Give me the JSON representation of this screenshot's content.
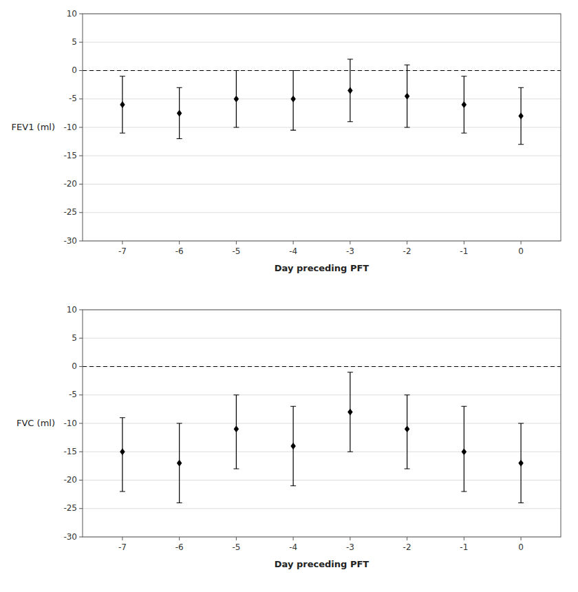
{
  "chart_data": [
    {
      "type": "errorbar",
      "x_label": "Day preceding PFT",
      "y_label": "FEV1 (ml)",
      "x": [
        -7,
        -6,
        -5,
        -4,
        -3,
        -2,
        -1,
        0
      ],
      "values": [
        -6,
        -7.5,
        -5,
        -5,
        -3.5,
        -4.5,
        -6,
        -8
      ],
      "upper": [
        -1,
        -3,
        0,
        0,
        2,
        1,
        -1,
        -3
      ],
      "lower": [
        -11,
        -12,
        -10,
        -10.5,
        -9,
        -10,
        -11,
        -13
      ],
      "xlim": [
        -7.7,
        0.7
      ],
      "ylim": [
        -30,
        10
      ],
      "xticks": [
        -7,
        -6,
        -5,
        -4,
        -3,
        -2,
        -1,
        0
      ],
      "yticks": [
        -30,
        -25,
        -20,
        -15,
        -10,
        -5,
        0,
        5,
        10
      ],
      "grid": true,
      "marker": "diamond",
      "color": "black",
      "hline": 0
    },
    {
      "type": "errorbar",
      "x_label": "Day preceding PFT",
      "y_label": "FVC (ml)",
      "x": [
        -7,
        -6,
        -5,
        -4,
        -3,
        -2,
        -1,
        0
      ],
      "values": [
        -15,
        -17,
        -11,
        -14,
        -8,
        -11,
        -15,
        -17
      ],
      "upper": [
        -9,
        -10,
        -5,
        -7,
        -1,
        -5,
        -7,
        -10
      ],
      "lower": [
        -22,
        -24,
        -18,
        -21,
        -15,
        -18,
        -22,
        -24
      ],
      "xlim": [
        -7.7,
        0.7
      ],
      "ylim": [
        -30,
        10
      ],
      "xticks": [
        -7,
        -6,
        -5,
        -4,
        -3,
        -2,
        -1,
        0
      ],
      "yticks": [
        -30,
        -25,
        -20,
        -15,
        -10,
        -5,
        0,
        5,
        10
      ],
      "grid": true,
      "marker": "diamond",
      "color": "black",
      "hline": 0
    }
  ]
}
